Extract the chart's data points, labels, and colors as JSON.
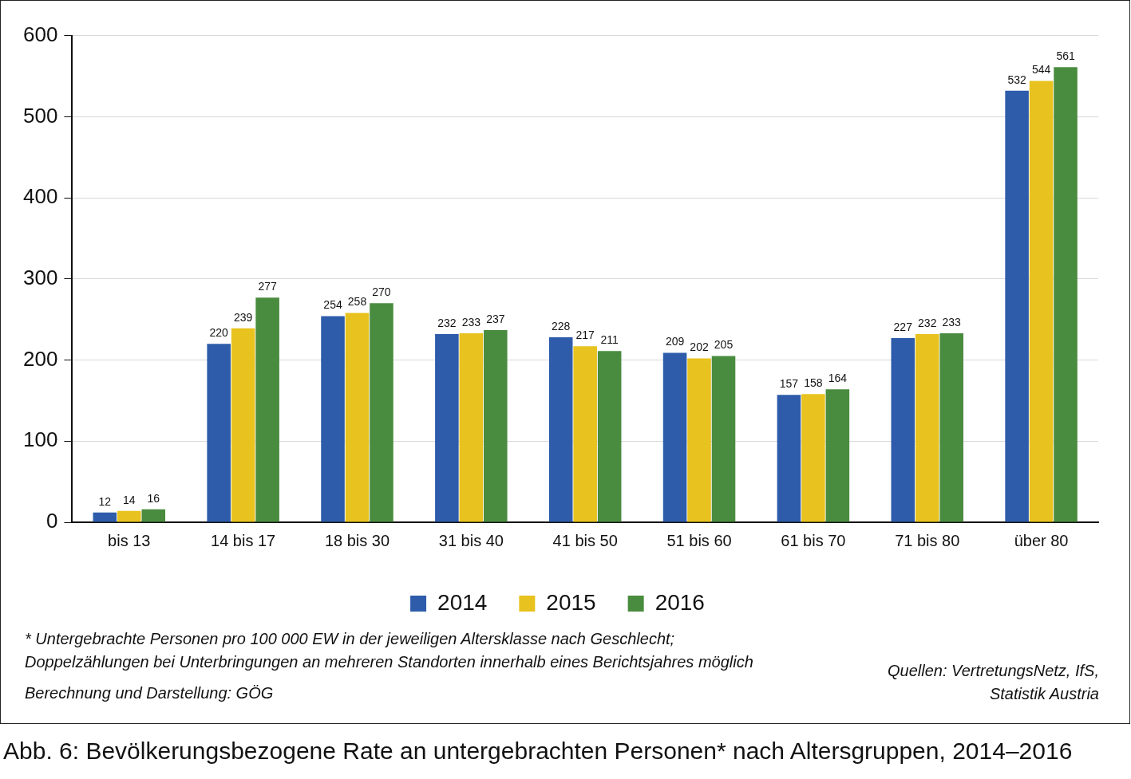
{
  "chart_data": {
    "type": "bar",
    "title": "Abb. 6: Bevölkerungsbezogene Rate an untergebrachten Personen* nach Altersgruppen, 2014–2016",
    "categories": [
      "bis 13",
      "14 bis 17",
      "18 bis 30",
      "31 bis 40",
      "41 bis 50",
      "51 bis 60",
      "61 bis 70",
      "71 bis 80",
      "über 80"
    ],
    "series": [
      {
        "name": "2014",
        "color": "#2e5caa",
        "values": [
          12,
          220,
          254,
          232,
          228,
          209,
          157,
          227,
          532
        ]
      },
      {
        "name": "2015",
        "color": "#e8c21e",
        "values": [
          14,
          239,
          258,
          233,
          217,
          202,
          158,
          232,
          544
        ]
      },
      {
        "name": "2016",
        "color": "#4a8c3f",
        "values": [
          16,
          277,
          270,
          237,
          211,
          205,
          164,
          233,
          561
        ]
      }
    ],
    "ylim": [
      0,
      600
    ],
    "yticks": [
      0,
      100,
      200,
      300,
      400,
      500,
      600
    ],
    "grid": "y",
    "legend": "bottom",
    "data_labels": true,
    "annotations": [
      "* Untergebrachte Personen pro 100 000 EW in der jeweiligen Altersklasse nach Geschlecht; Doppelzählungen bei Unterbringungen an mehreren Standorten innerhalb eines Berichtsjahres möglich",
      "Berechnung und Darstellung: GÖG",
      "Quellen: VertretungsNetz, IfS, Statistik Austria"
    ]
  }
}
